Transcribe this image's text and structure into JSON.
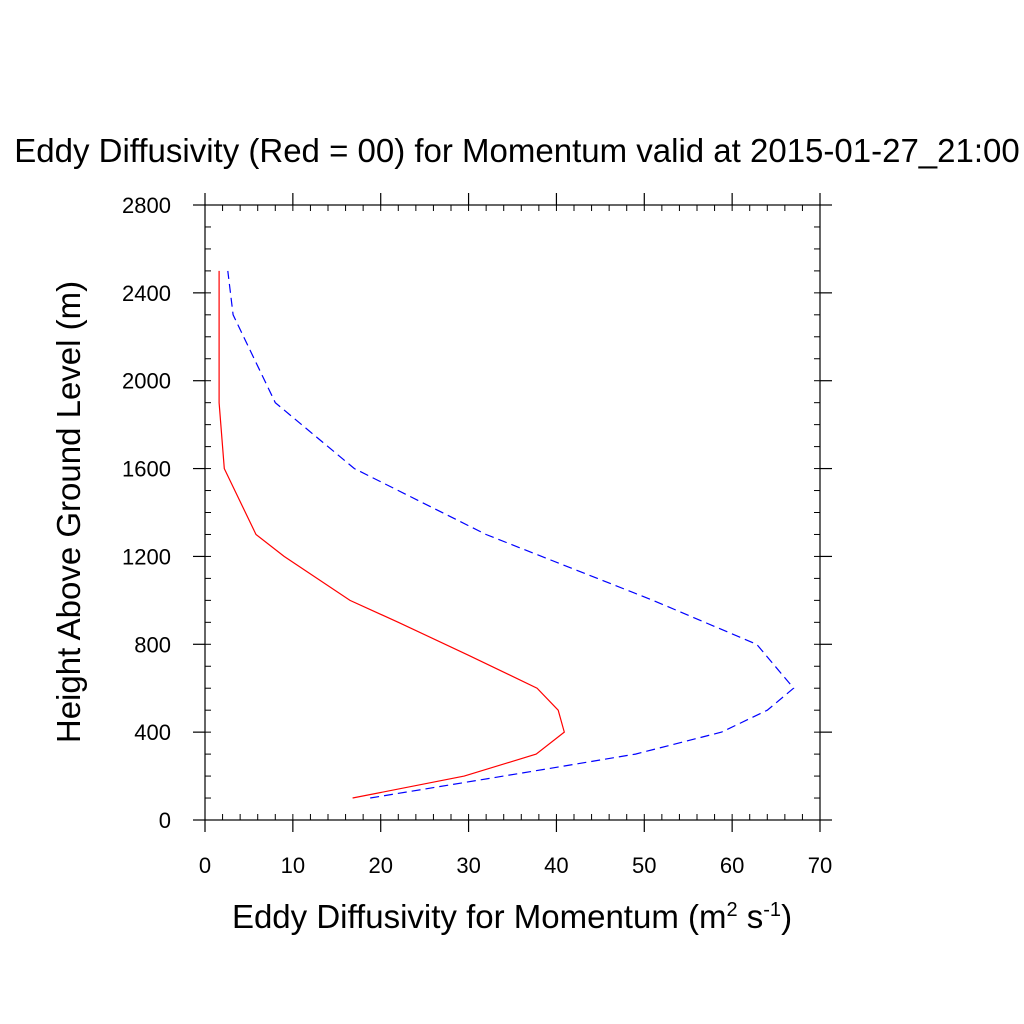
{
  "chart_data": {
    "type": "line",
    "title": "Eddy Diffusivity (Red = 00) for Momentum valid at 2015-01-27_21:00",
    "xlabel": {
      "text": "Eddy Diffusivity for Momentum (m",
      "sup1": "2",
      "mid": " s",
      "sup2": "-1",
      "end": ")"
    },
    "ylabel": "Height Above Ground Level (m)",
    "xlim": [
      0,
      70
    ],
    "ylim": [
      0,
      2800
    ],
    "x_ticks": [
      0,
      10,
      20,
      30,
      40,
      50,
      60,
      70
    ],
    "y_ticks": [
      0,
      400,
      800,
      1200,
      1600,
      2000,
      2400,
      2800
    ],
    "grid": false,
    "series": [
      {
        "color": "#ff0000",
        "line_style": "solid",
        "points": [
          {
            "x": 16.8,
            "y": 100
          },
          {
            "x": 29.5,
            "y": 200
          },
          {
            "x": 37.7,
            "y": 300
          },
          {
            "x": 40.9,
            "y": 400
          },
          {
            "x": 40.2,
            "y": 500
          },
          {
            "x": 37.8,
            "y": 600
          },
          {
            "x": 30.0,
            "y": 750
          },
          {
            "x": 22.0,
            "y": 900
          },
          {
            "x": 16.5,
            "y": 1000
          },
          {
            "x": 9.0,
            "y": 1200
          },
          {
            "x": 5.8,
            "y": 1300
          },
          {
            "x": 2.2,
            "y": 1600
          },
          {
            "x": 1.6,
            "y": 1900
          },
          {
            "x": 1.6,
            "y": 2500
          }
        ]
      },
      {
        "color": "#0000ff",
        "line_style": "dashed",
        "points": [
          {
            "x": 18.8,
            "y": 100
          },
          {
            "x": 37.0,
            "y": 220
          },
          {
            "x": 49.0,
            "y": 300
          },
          {
            "x": 58.8,
            "y": 400
          },
          {
            "x": 64.0,
            "y": 500
          },
          {
            "x": 67.0,
            "y": 600
          },
          {
            "x": 62.8,
            "y": 800
          },
          {
            "x": 51.0,
            "y": 1000
          },
          {
            "x": 32.0,
            "y": 1300
          },
          {
            "x": 17.0,
            "y": 1600
          },
          {
            "x": 8.0,
            "y": 1900
          },
          {
            "x": 3.2,
            "y": 2300
          },
          {
            "x": 2.6,
            "y": 2500
          }
        ]
      }
    ]
  }
}
